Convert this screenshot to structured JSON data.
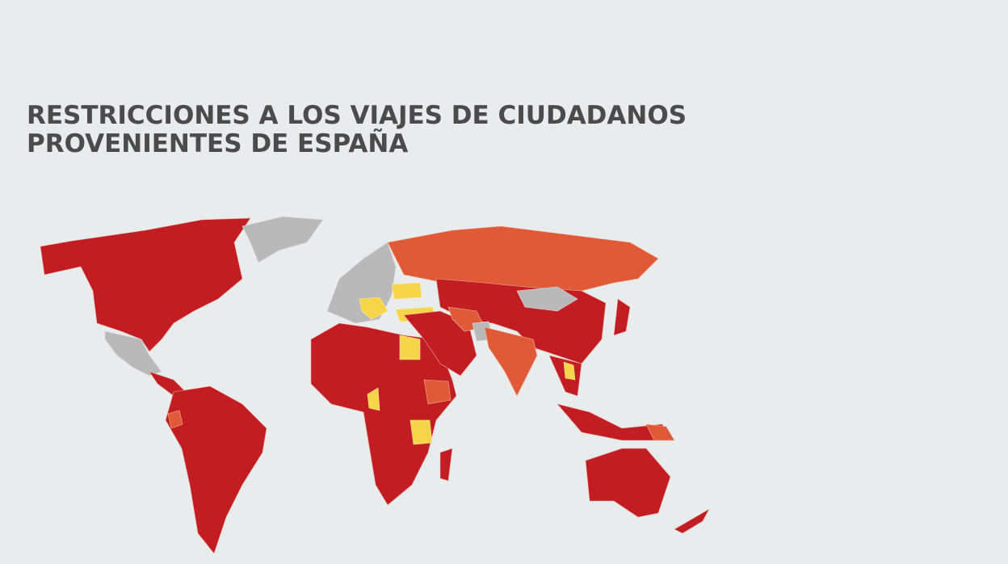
{
  "header": {
    "title_lines": [
      "RESTRICCIONES A LOS VIAJES DE CIUDADANOS",
      "PROVENIENTES DE ESPAÑA"
    ]
  }
}
